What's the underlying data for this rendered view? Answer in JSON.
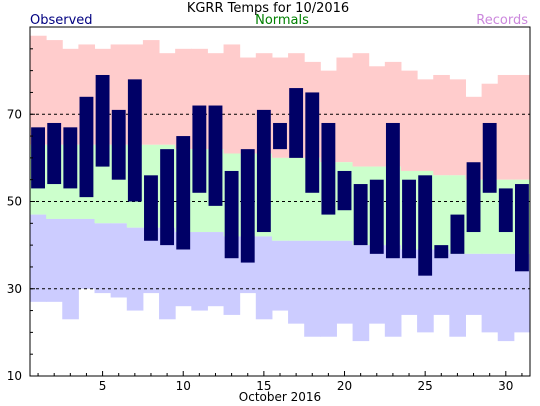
{
  "chart_data": {
    "type": "bar",
    "title": "KGRR Temps for 10/2016",
    "xlabel": "October 2016",
    "ylabel": "",
    "legend": [
      {
        "name": "Observed",
        "color": "#000080",
        "placement": "top-left"
      },
      {
        "name": "Normals",
        "color": "#008000",
        "placement": "top-center"
      },
      {
        "name": "Records",
        "color": "#cc88dd",
        "placement": "top-right"
      }
    ],
    "xlim": [
      0.5,
      31.5
    ],
    "ylim": [
      10,
      90
    ],
    "yticks": [
      10,
      30,
      50,
      70
    ],
    "xticks": [
      5,
      10,
      15,
      20,
      25,
      30
    ],
    "dashed_gridlines": [
      30,
      50,
      70
    ],
    "colors": {
      "record_high_band": "#ffcccc",
      "normal_band": "#ccffcc",
      "record_low_band": "#ccccff",
      "observed_bar": "#000066",
      "gridline": "#000000"
    },
    "days": [
      1,
      2,
      3,
      4,
      5,
      6,
      7,
      8,
      9,
      10,
      11,
      12,
      13,
      14,
      15,
      16,
      17,
      18,
      19,
      20,
      21,
      22,
      23,
      24,
      25,
      26,
      27,
      28,
      29,
      30,
      31
    ],
    "observed_high": [
      67,
      68,
      67,
      74,
      79,
      71,
      78,
      56,
      62,
      65,
      72,
      72,
      57,
      62,
      71,
      68,
      76,
      75,
      68,
      57,
      54,
      55,
      68,
      55,
      56,
      40,
      47,
      59,
      68,
      53,
      54
    ],
    "observed_low": [
      53,
      54,
      53,
      51,
      58,
      55,
      50,
      41,
      40,
      39,
      52,
      49,
      37,
      36,
      43,
      62,
      60,
      52,
      47,
      48,
      40,
      38,
      37,
      37,
      33,
      37,
      38,
      43,
      52,
      43,
      34
    ],
    "normal_high": [
      63,
      63,
      63,
      63,
      63,
      63,
      63,
      63,
      63,
      62,
      62,
      62,
      61,
      61,
      61,
      60,
      60,
      60,
      59,
      59,
      58,
      58,
      58,
      57,
      57,
      56,
      56,
      55,
      55,
      55,
      55
    ],
    "normal_low": [
      47,
      46,
      46,
      46,
      45,
      45,
      44,
      44,
      44,
      43,
      43,
      43,
      42,
      42,
      42,
      41,
      41,
      41,
      41,
      41,
      40,
      40,
      40,
      39,
      39,
      39,
      38,
      38,
      38,
      38,
      38
    ],
    "record_high": [
      88,
      87,
      85,
      86,
      85,
      86,
      86,
      87,
      84,
      85,
      85,
      84,
      86,
      83,
      84,
      83,
      84,
      82,
      80,
      83,
      84,
      81,
      82,
      80,
      78,
      79,
      78,
      74,
      77,
      79,
      79
    ],
    "record_low": [
      27,
      27,
      23,
      30,
      29,
      28,
      25,
      29,
      23,
      26,
      25,
      26,
      24,
      29,
      23,
      25,
      22,
      19,
      19,
      22,
      18,
      22,
      19,
      24,
      20,
      24,
      19,
      24,
      20,
      18,
      20
    ]
  }
}
